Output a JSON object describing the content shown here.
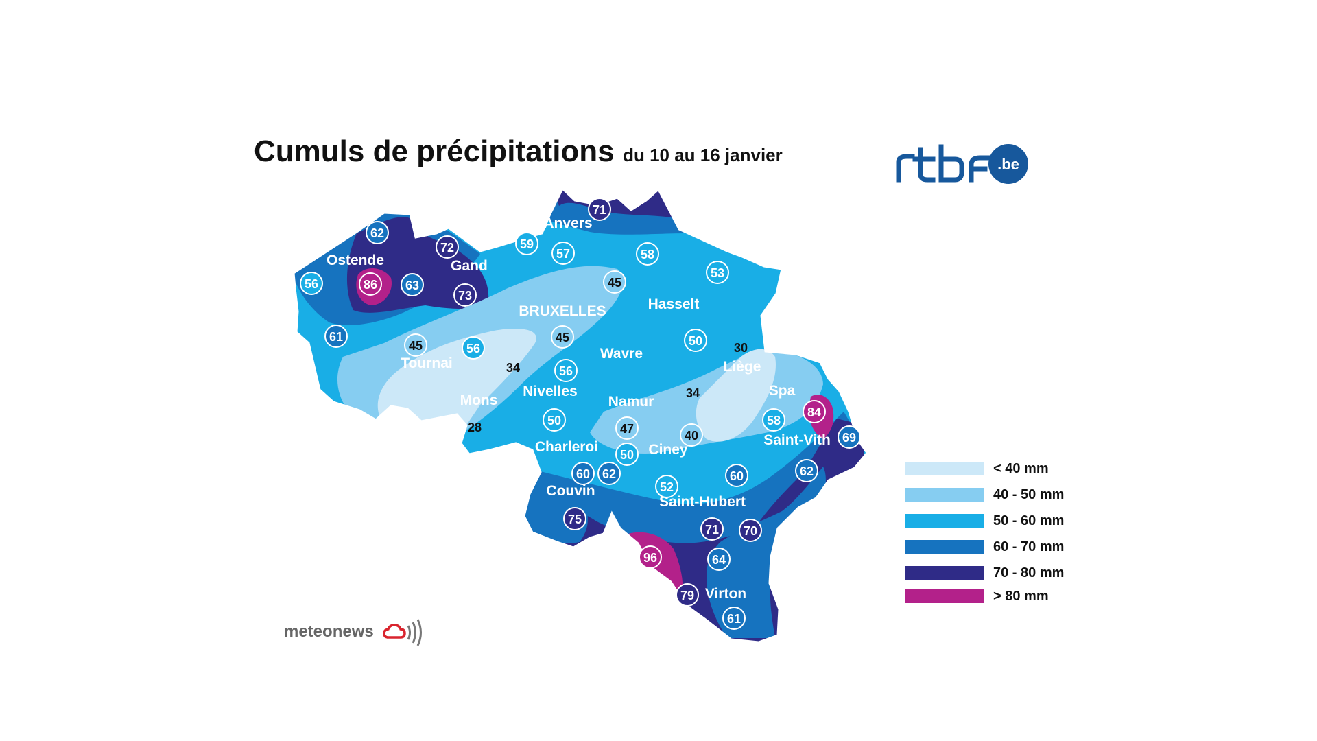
{
  "title": "Cumuls de précipitations",
  "subtitle": "du 10 au 16 janvier",
  "logos": {
    "rtbf": "rtbf.be",
    "meteonews": "meteonews"
  },
  "colors": {
    "lt40": "#cce8f8",
    "c40_50": "#86cdf1",
    "c50_60": "#19aee6",
    "c60_70": "#1673bf",
    "c70_80": "#2f2b87",
    "gt80": "#b3218a",
    "rtbf_blue": "#17589c",
    "meteonews_red": "#d9242e"
  },
  "legend": [
    {
      "label": "< 40 mm",
      "color": "#cce8f8"
    },
    {
      "label": "40 - 50 mm",
      "color": "#86cdf1"
    },
    {
      "label": "50 - 60 mm",
      "color": "#19aee6"
    },
    {
      "label": "60 - 70 mm",
      "color": "#1673bf"
    },
    {
      "label": "70 - 80 mm",
      "color": "#2f2b87"
    },
    {
      "label": "> 80 mm",
      "color": "#b3218a"
    }
  ],
  "cities": [
    "Anvers",
    "Ostende",
    "Gand",
    "BRUXELLES",
    "Hasselt",
    "Tournai",
    "Wavre",
    "Liège",
    "Mons",
    "Nivelles",
    "Namur",
    "Spa",
    "Charleroi",
    "Ciney",
    "Saint-Vith",
    "Couvin",
    "Saint-Hubert",
    "Virton"
  ],
  "values": [
    71,
    62,
    72,
    59,
    57,
    58,
    56,
    86,
    63,
    73,
    45,
    53,
    61,
    45,
    56,
    45,
    50,
    30,
    34,
    56,
    34,
    84,
    28,
    50,
    47,
    40,
    58,
    69,
    50,
    60,
    62,
    52,
    60,
    62,
    75,
    71,
    70,
    96,
    64,
    79,
    61
  ]
}
